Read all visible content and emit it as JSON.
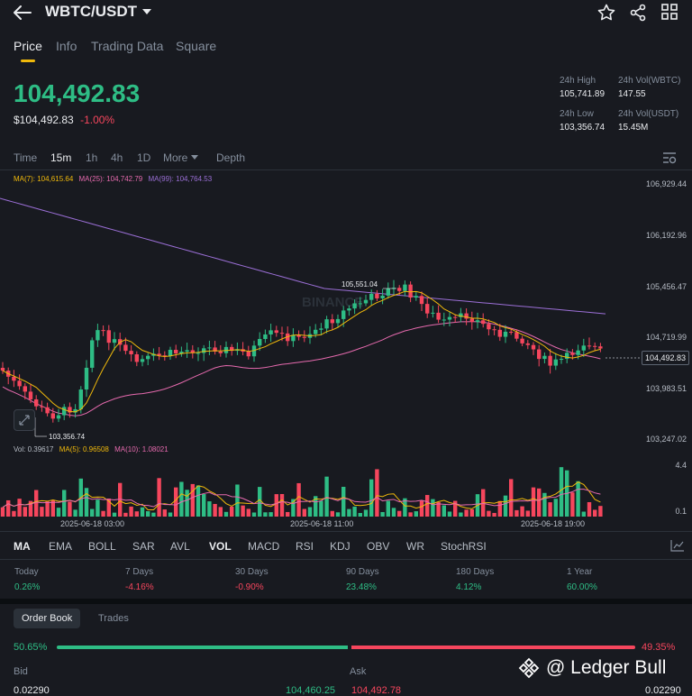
{
  "header": {
    "pair": "WBTC/USDT"
  },
  "tabs": [
    {
      "label": "Price",
      "active": true
    },
    {
      "label": "Info",
      "active": false
    },
    {
      "label": "Trading Data",
      "active": false
    },
    {
      "label": "Square",
      "active": false
    }
  ],
  "price": {
    "last": "104,492.83",
    "usd": "$104,492.83",
    "change": "-1.00%"
  },
  "stats": {
    "high_label": "24h High",
    "high_value": "105,741.89",
    "low_label": "24h Low",
    "low_value": "103,356.74",
    "vol_base_label": "24h Vol(WBTC)",
    "vol_base_value": "147.55",
    "vol_quote_label": "24h Vol(USDT)",
    "vol_quote_value": "15.45M"
  },
  "timeframes": {
    "time": "Time",
    "m15": "15m",
    "h1": "1h",
    "h4": "4h",
    "d1": "1D",
    "more": "More",
    "depth": "Depth"
  },
  "ma_legend": {
    "ma7": "MA(7): 104,615.64",
    "ma25": "MA(25): 104,742.79",
    "ma99": "MA(99): 104,764.53"
  },
  "price_axis": [
    "106,929.44",
    "106,192.96",
    "105,456.47",
    "104,719.99",
    "103,983.51",
    "103,247.02"
  ],
  "current_price_tag": "104,492.83",
  "chart_annotations": {
    "high_marker": "105,551.04",
    "low_marker": "103,356.74"
  },
  "volume_legend": {
    "vol": "Vol: 0.39617",
    "ma5": "MA(5): 0.96508",
    "ma10": "MA(10): 1.08021"
  },
  "volume_axis": [
    "4.4",
    "0.1"
  ],
  "time_axis": [
    "2025-06-18 03:00",
    "2025-06-18 11:00",
    "2025-06-18 19:00"
  ],
  "indicators": [
    {
      "label": "MA",
      "active": true
    },
    {
      "label": "EMA",
      "active": false
    },
    {
      "label": "BOLL",
      "active": false
    },
    {
      "label": "SAR",
      "active": false
    },
    {
      "label": "AVL",
      "active": false
    },
    {
      "label": "VOL",
      "active": true
    },
    {
      "label": "MACD",
      "active": false
    },
    {
      "label": "RSI",
      "active": false
    },
    {
      "label": "KDJ",
      "active": false
    },
    {
      "label": "OBV",
      "active": false
    },
    {
      "label": "WR",
      "active": false
    },
    {
      "label": "StochRSI",
      "active": false
    }
  ],
  "performance": [
    {
      "label": "Today",
      "value": "0.26%",
      "dir": "up"
    },
    {
      "label": "7 Days",
      "value": "-4.16%",
      "dir": "down"
    },
    {
      "label": "30 Days",
      "value": "-0.90%",
      "dir": "down"
    },
    {
      "label": "90 Days",
      "value": "23.48%",
      "dir": "up"
    },
    {
      "label": "180 Days",
      "value": "4.12%",
      "dir": "up"
    },
    {
      "label": "1 Year",
      "value": "60.00%",
      "dir": "up"
    }
  ],
  "orderbook": {
    "tab_orderbook": "Order Book",
    "tab_trades": "Trades",
    "bid_pct": "50.65%",
    "ask_pct": "49.35%",
    "bid_fraction": 0.5065,
    "bid_label": "Bid",
    "ask_label": "Ask",
    "bid_qty": "0.02290",
    "bid_price": "104,460.25",
    "ask_price": "104,492.78",
    "ask_qty": "0.02290"
  },
  "watermark": "@ Ledger Bull",
  "chart_watermark": "BINANCE",
  "colors": {
    "up": "#2ebd85",
    "down": "#f6465d",
    "ma7": "#f0b90b",
    "ma25": "#e66aae",
    "ma99": "#9b6fd6",
    "accent": "#f0b90b"
  }
}
